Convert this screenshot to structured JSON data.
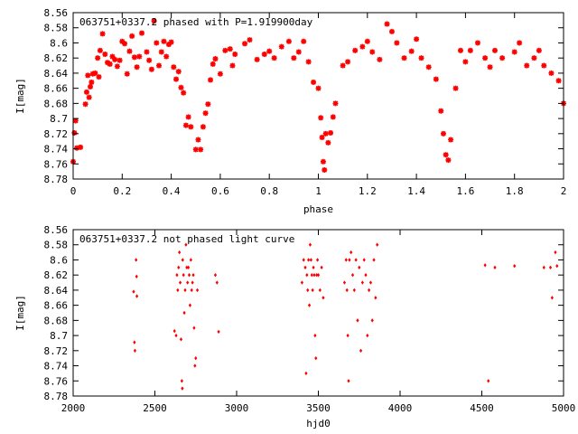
{
  "point_color": "#ff0000",
  "chart_data": [
    {
      "type": "scatter",
      "title": "063751+0337.2 phased with P=1.919900day",
      "xlabel": "phase",
      "ylabel": "I[mag]",
      "xlim": [
        0,
        2
      ],
      "ylim": [
        8.56,
        8.78
      ],
      "y_inverted": true,
      "grid": false,
      "xticks": [
        0,
        0.2,
        0.4,
        0.6,
        0.8,
        1,
        1.2,
        1.4,
        1.6,
        1.8,
        2
      ],
      "xtick_labels": [
        "0",
        "0.2",
        "0.4",
        "0.6",
        "0.8",
        "1",
        "1.2",
        "1.4",
        "1.6",
        "1.8",
        "2"
      ],
      "yticks": [
        8.56,
        8.58,
        8.6,
        8.62,
        8.64,
        8.66,
        8.68,
        8.7,
        8.72,
        8.74,
        8.76,
        8.78
      ],
      "ytick_labels": [
        "8.56",
        "8.58",
        "8.6",
        "8.62",
        "8.64",
        "8.66",
        "8.68",
        "8.7",
        "8.72",
        "8.74",
        "8.76",
        "8.78"
      ],
      "marker": "star",
      "points": [
        [
          0.0,
          8.757
        ],
        [
          0.005,
          8.719
        ],
        [
          0.01,
          8.703
        ],
        [
          0.015,
          8.739
        ],
        [
          0.03,
          8.738
        ],
        [
          0.05,
          8.681
        ],
        [
          0.055,
          8.665
        ],
        [
          0.06,
          8.643
        ],
        [
          0.065,
          8.672
        ],
        [
          0.07,
          8.658
        ],
        [
          0.075,
          8.652
        ],
        [
          0.08,
          8.641
        ],
        [
          0.09,
          8.64
        ],
        [
          0.1,
          8.62
        ],
        [
          0.105,
          8.645
        ],
        [
          0.11,
          8.61
        ],
        [
          0.12,
          8.588
        ],
        [
          0.13,
          8.615
        ],
        [
          0.14,
          8.626
        ],
        [
          0.15,
          8.628
        ],
        [
          0.16,
          8.618
        ],
        [
          0.17,
          8.622
        ],
        [
          0.18,
          8.631
        ],
        [
          0.19,
          8.623
        ],
        [
          0.2,
          8.598
        ],
        [
          0.21,
          8.601
        ],
        [
          0.22,
          8.641
        ],
        [
          0.23,
          8.611
        ],
        [
          0.24,
          8.591
        ],
        [
          0.25,
          8.619
        ],
        [
          0.26,
          8.632
        ],
        [
          0.27,
          8.618
        ],
        [
          0.28,
          8.587
        ],
        [
          0.3,
          8.612
        ],
        [
          0.31,
          8.623
        ],
        [
          0.32,
          8.635
        ],
        [
          0.33,
          8.571
        ],
        [
          0.34,
          8.6
        ],
        [
          0.35,
          8.63
        ],
        [
          0.36,
          8.612
        ],
        [
          0.37,
          8.598
        ],
        [
          0.38,
          8.618
        ],
        [
          0.39,
          8.602
        ],
        [
          0.4,
          8.599
        ],
        [
          0.41,
          8.632
        ],
        [
          0.42,
          8.648
        ],
        [
          0.43,
          8.638
        ],
        [
          0.44,
          8.659
        ],
        [
          0.45,
          8.666
        ],
        [
          0.46,
          8.709
        ],
        [
          0.47,
          8.698
        ],
        [
          0.48,
          8.711
        ],
        [
          0.5,
          8.741
        ],
        [
          0.51,
          8.728
        ],
        [
          0.52,
          8.741
        ],
        [
          0.53,
          8.711
        ],
        [
          0.54,
          8.693
        ],
        [
          0.55,
          8.681
        ],
        [
          0.56,
          8.649
        ],
        [
          0.57,
          8.628
        ],
        [
          0.58,
          8.621
        ],
        [
          0.6,
          8.641
        ],
        [
          0.62,
          8.61
        ],
        [
          0.64,
          8.608
        ],
        [
          0.65,
          8.63
        ],
        [
          0.66,
          8.615
        ],
        [
          0.7,
          8.601
        ],
        [
          0.72,
          8.596
        ],
        [
          0.75,
          8.622
        ],
        [
          0.78,
          8.615
        ],
        [
          0.8,
          8.611
        ],
        [
          0.82,
          8.62
        ],
        [
          0.85,
          8.605
        ],
        [
          0.88,
          8.598
        ],
        [
          0.9,
          8.62
        ],
        [
          0.92,
          8.612
        ],
        [
          0.94,
          8.598
        ],
        [
          0.96,
          8.625
        ],
        [
          0.98,
          8.652
        ],
        [
          1.0,
          8.66
        ],
        [
          1.01,
          8.699
        ],
        [
          1.015,
          8.725
        ],
        [
          1.02,
          8.757
        ],
        [
          1.025,
          8.768
        ],
        [
          1.03,
          8.72
        ],
        [
          1.04,
          8.732
        ],
        [
          1.05,
          8.719
        ],
        [
          1.06,
          8.698
        ],
        [
          1.07,
          8.68
        ],
        [
          1.1,
          8.63
        ],
        [
          1.12,
          8.625
        ],
        [
          1.15,
          8.61
        ],
        [
          1.18,
          8.605
        ],
        [
          1.2,
          8.598
        ],
        [
          1.22,
          8.612
        ],
        [
          1.25,
          8.622
        ],
        [
          1.28,
          8.575
        ],
        [
          1.3,
          8.585
        ],
        [
          1.32,
          8.6
        ],
        [
          1.35,
          8.62
        ],
        [
          1.38,
          8.611
        ],
        [
          1.4,
          8.595
        ],
        [
          1.42,
          8.62
        ],
        [
          1.45,
          8.632
        ],
        [
          1.48,
          8.648
        ],
        [
          1.5,
          8.69
        ],
        [
          1.51,
          8.72
        ],
        [
          1.52,
          8.748
        ],
        [
          1.53,
          8.755
        ],
        [
          1.54,
          8.728
        ],
        [
          1.56,
          8.66
        ],
        [
          1.58,
          8.61
        ],
        [
          1.6,
          8.625
        ],
        [
          1.62,
          8.61
        ],
        [
          1.65,
          8.6
        ],
        [
          1.68,
          8.62
        ],
        [
          1.7,
          8.632
        ],
        [
          1.72,
          8.61
        ],
        [
          1.75,
          8.62
        ],
        [
          1.8,
          8.612
        ],
        [
          1.82,
          8.6
        ],
        [
          1.85,
          8.63
        ],
        [
          1.88,
          8.62
        ],
        [
          1.9,
          8.61
        ],
        [
          1.92,
          8.63
        ],
        [
          1.95,
          8.64
        ],
        [
          1.98,
          8.65
        ],
        [
          2.0,
          8.68
        ]
      ]
    },
    {
      "type": "scatter",
      "title": "063751+0337.2 not phased light curve",
      "xlabel": "hjd0",
      "ylabel": "I[mag]",
      "xlim": [
        2000,
        5000
      ],
      "ylim": [
        8.56,
        8.78
      ],
      "y_inverted": true,
      "grid": false,
      "xticks": [
        2000,
        2500,
        3000,
        3500,
        4000,
        4500,
        5000
      ],
      "xtick_labels": [
        "2000",
        "2500",
        "3000",
        "3500",
        "4000",
        "4500",
        "5000"
      ],
      "yticks": [
        8.56,
        8.58,
        8.6,
        8.62,
        8.64,
        8.66,
        8.68,
        8.7,
        8.72,
        8.74,
        8.76,
        8.78
      ],
      "ytick_labels": [
        "8.56",
        "8.58",
        "8.6",
        "8.62",
        "8.64",
        "8.66",
        "8.68",
        "8.7",
        "8.72",
        "8.74",
        "8.76",
        "8.78"
      ],
      "marker": "dot",
      "points": [
        [
          2370,
          8.642
        ],
        [
          2375,
          8.709
        ],
        [
          2378,
          8.72
        ],
        [
          2385,
          8.6
        ],
        [
          2388,
          8.622
        ],
        [
          2390,
          8.648
        ],
        [
          2620,
          8.694
        ],
        [
          2630,
          8.7
        ],
        [
          2635,
          8.62
        ],
        [
          2640,
          8.64
        ],
        [
          2645,
          8.61
        ],
        [
          2650,
          8.59
        ],
        [
          2655,
          8.63
        ],
        [
          2660,
          8.705
        ],
        [
          2665,
          8.76
        ],
        [
          2668,
          8.77
        ],
        [
          2670,
          8.6
        ],
        [
          2675,
          8.62
        ],
        [
          2680,
          8.67
        ],
        [
          2685,
          8.64
        ],
        [
          2690,
          8.58
        ],
        [
          2695,
          8.61
        ],
        [
          2700,
          8.63
        ],
        [
          2705,
          8.61
        ],
        [
          2710,
          8.62
        ],
        [
          2715,
          8.66
        ],
        [
          2720,
          8.6
        ],
        [
          2725,
          8.64
        ],
        [
          2730,
          8.63
        ],
        [
          2735,
          8.62
        ],
        [
          2740,
          8.69
        ],
        [
          2745,
          8.74
        ],
        [
          2750,
          8.73
        ],
        [
          2760,
          8.64
        ],
        [
          2870,
          8.62
        ],
        [
          2880,
          8.63
        ],
        [
          2890,
          8.695
        ],
        [
          3400,
          8.63
        ],
        [
          3410,
          8.6
        ],
        [
          3420,
          8.61
        ],
        [
          3425,
          8.75
        ],
        [
          3430,
          8.62
        ],
        [
          3435,
          8.64
        ],
        [
          3440,
          8.6
        ],
        [
          3445,
          8.66
        ],
        [
          3450,
          8.58
        ],
        [
          3455,
          8.6
        ],
        [
          3460,
          8.62
        ],
        [
          3465,
          8.64
        ],
        [
          3470,
          8.61
        ],
        [
          3475,
          8.62
        ],
        [
          3480,
          8.7
        ],
        [
          3485,
          8.73
        ],
        [
          3490,
          8.62
        ],
        [
          3495,
          8.6
        ],
        [
          3500,
          8.62
        ],
        [
          3510,
          8.64
        ],
        [
          3520,
          8.61
        ],
        [
          3530,
          8.65
        ],
        [
          3660,
          8.63
        ],
        [
          3670,
          8.6
        ],
        [
          3675,
          8.64
        ],
        [
          3680,
          8.7
        ],
        [
          3685,
          8.76
        ],
        [
          3690,
          8.6
        ],
        [
          3700,
          8.59
        ],
        [
          3710,
          8.62
        ],
        [
          3720,
          8.64
        ],
        [
          3730,
          8.6
        ],
        [
          3740,
          8.68
        ],
        [
          3750,
          8.61
        ],
        [
          3760,
          8.72
        ],
        [
          3770,
          8.63
        ],
        [
          3780,
          8.6
        ],
        [
          3790,
          8.62
        ],
        [
          3800,
          8.7
        ],
        [
          3810,
          8.64
        ],
        [
          3820,
          8.63
        ],
        [
          3830,
          8.68
        ],
        [
          3840,
          8.6
        ],
        [
          3850,
          8.65
        ],
        [
          3860,
          8.58
        ],
        [
          4520,
          8.607
        ],
        [
          4540,
          8.76
        ],
        [
          4580,
          8.61
        ],
        [
          4700,
          8.608
        ],
        [
          4880,
          8.61
        ],
        [
          4920,
          8.61
        ],
        [
          4930,
          8.65
        ],
        [
          4950,
          8.59
        ],
        [
          4960,
          8.608
        ]
      ]
    }
  ]
}
